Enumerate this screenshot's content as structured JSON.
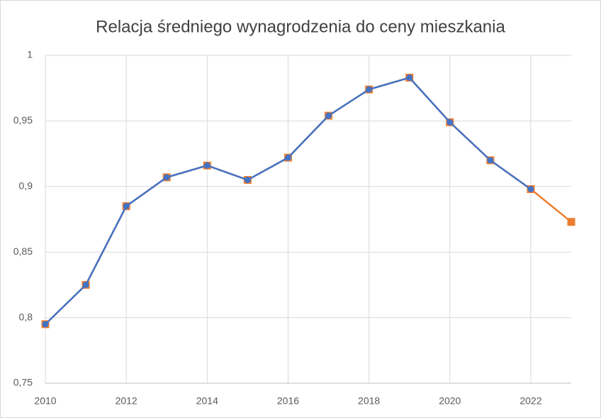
{
  "chart_data": {
    "type": "line",
    "title": "Relacja średniego wynagrodzenia do ceny mieszkania",
    "x": [
      2010,
      2011,
      2012,
      2013,
      2014,
      2015,
      2016,
      2017,
      2018,
      2019,
      2020,
      2021,
      2022,
      2023
    ],
    "series": [
      {
        "color": "#ed7d31",
        "marker": "square",
        "values": [
          0.795,
          0.825,
          0.885,
          0.907,
          0.916,
          0.905,
          0.922,
          0.954,
          0.974,
          0.983,
          0.949,
          0.92,
          0.898,
          0.873
        ]
      },
      {
        "color": "#4472c4",
        "marker": "circle",
        "values": [
          0.795,
          0.825,
          0.885,
          0.907,
          0.916,
          0.905,
          0.922,
          0.954,
          0.974,
          0.983,
          0.949,
          0.92,
          0.898,
          null
        ]
      }
    ],
    "xlim": [
      2010,
      2023
    ],
    "xticks": [
      2010,
      2012,
      2014,
      2016,
      2018,
      2020,
      2022
    ],
    "ylim": [
      0.75,
      1
    ],
    "yticks": [
      {
        "value": 0.75,
        "label": "0,75"
      },
      {
        "value": 0.8,
        "label": "0,8"
      },
      {
        "value": 0.85,
        "label": "0,85"
      },
      {
        "value": 0.9,
        "label": "0,9"
      },
      {
        "value": 0.95,
        "label": "0,95"
      },
      {
        "value": 1,
        "label": "1"
      }
    ],
    "grid": true
  }
}
